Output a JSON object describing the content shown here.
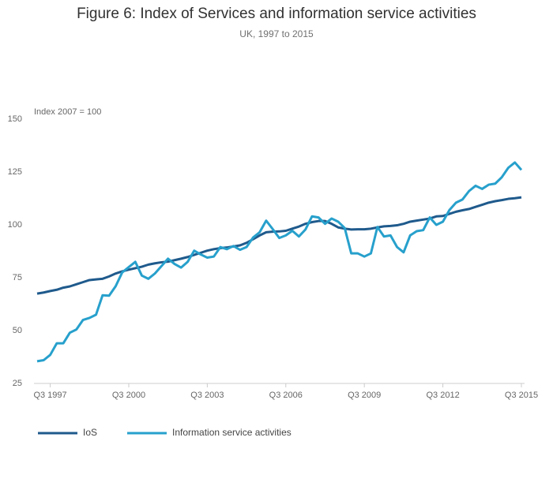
{
  "chart_data": {
    "type": "line",
    "title": "Figure 6: Index of Services and information service activities",
    "subtitle": "UK, 1997 to 2015",
    "y_label": "Index 2007 = 100",
    "categories": [
      null,
      null,
      "Q3 1997",
      null,
      null,
      null,
      null,
      null,
      null,
      null,
      null,
      null,
      null,
      null,
      "Q3 2000",
      null,
      null,
      null,
      null,
      null,
      null,
      null,
      null,
      null,
      null,
      null,
      "Q3 2003",
      null,
      null,
      null,
      null,
      null,
      null,
      null,
      null,
      null,
      null,
      null,
      "Q3 2006",
      null,
      null,
      null,
      null,
      null,
      null,
      null,
      null,
      null,
      null,
      null,
      "Q3 2009",
      null,
      null,
      null,
      null,
      null,
      null,
      null,
      null,
      null,
      null,
      null,
      "Q3 2012",
      null,
      null,
      null,
      null,
      null,
      null,
      null,
      null,
      null,
      null,
      null,
      "Q3 2015"
    ],
    "series": [
      {
        "name": "IoS",
        "color": "#1f5a8c",
        "values": [
          67.5,
          68,
          68.7,
          69.3,
          70.3,
          70.9,
          71.9,
          72.9,
          73.9,
          74.2,
          74.5,
          75.6,
          77,
          78,
          78.8,
          79.5,
          80.2,
          81.2,
          81.8,
          82.3,
          82.6,
          83.3,
          84,
          84.8,
          85.8,
          86.8,
          87.8,
          88.5,
          89,
          89.3,
          89.8,
          90.3,
          91.5,
          93.2,
          95,
          96.5,
          96.8,
          96.9,
          97.2,
          98.2,
          99.2,
          100.5,
          101.3,
          101.8,
          101.8,
          100.5,
          98.8,
          98.2,
          97.8,
          97.9,
          97.9,
          98.2,
          98.8,
          99.3,
          99.5,
          99.8,
          100.5,
          101.5,
          102,
          102.5,
          103,
          104,
          104.2,
          105.2,
          106.2,
          106.9,
          107.5,
          108.5,
          109.5,
          110.5,
          111.2,
          111.7,
          112.3,
          112.6,
          113
        ]
      },
      {
        "name": "Information service activities",
        "color": "#27a0cc",
        "values": [
          35.5,
          36,
          38.5,
          44,
          44,
          49,
          50.5,
          55,
          56,
          57.5,
          66.7,
          66.5,
          71,
          77.5,
          80,
          82.5,
          76,
          74.5,
          77,
          80.5,
          84,
          81.5,
          79.8,
          82.5,
          87.8,
          86,
          84.5,
          85,
          89.5,
          88.5,
          90,
          88.2,
          89.5,
          94,
          96.5,
          102,
          98,
          93.8,
          95,
          97.2,
          94.5,
          97.8,
          104,
          103.5,
          100.5,
          103,
          101.5,
          98.5,
          86.5,
          86.5,
          85,
          86.5,
          99,
          94.5,
          95,
          89.5,
          87,
          95,
          97,
          97.5,
          103.5,
          100,
          101.5,
          107,
          110.5,
          112,
          116,
          118.5,
          117,
          119,
          119.5,
          122.5,
          127,
          129.5,
          126
        ]
      }
    ],
    "ylim": [
      25,
      150
    ],
    "yticks": [
      25,
      50,
      75,
      100,
      125,
      150
    ],
    "grid": false,
    "legend": "bottom-left"
  }
}
